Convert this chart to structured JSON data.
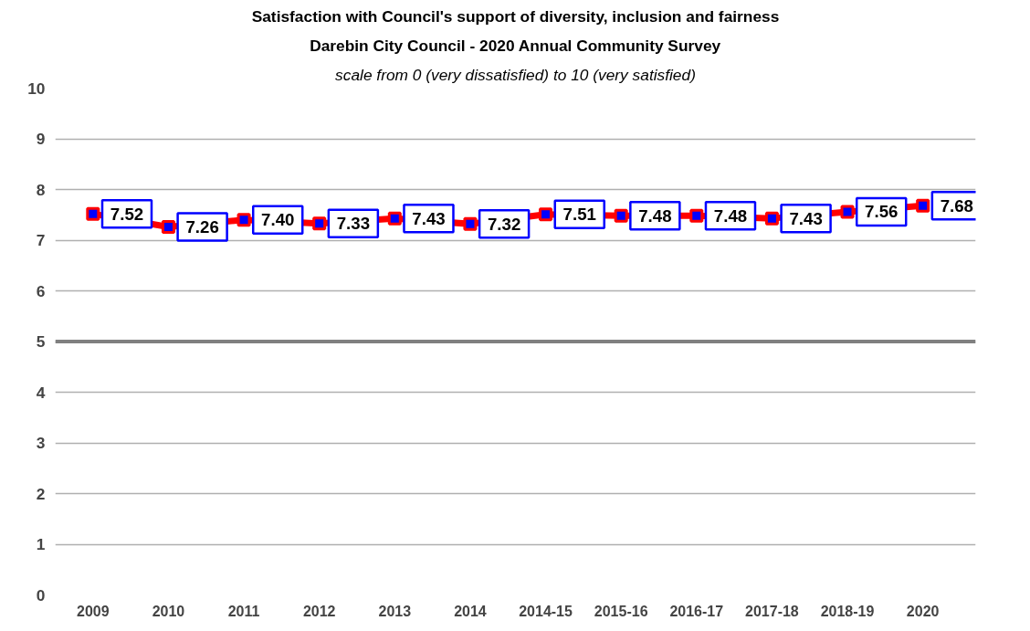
{
  "chart_data": {
    "type": "line",
    "title": "Satisfaction with Council's support of diversity, inclusion and fairness",
    "subtitle": "Darebin City Council - 2020 Annual Community Survey",
    "annotations": [
      "scale from 0 (very dissatisfied) to 10 (very satisfied)"
    ],
    "categories": [
      "2009",
      "2010",
      "2011",
      "2012",
      "2013",
      "2014",
      "2014-15",
      "2015-16",
      "2016-17",
      "2017-18",
      "2018-19",
      "2020"
    ],
    "series": [
      {
        "color": "#ff0000",
        "values": [
          7.52,
          7.26,
          7.4,
          7.33,
          7.43,
          7.32,
          7.51,
          7.48,
          7.48,
          7.43,
          7.56,
          7.68
        ],
        "value_labels": [
          "7.52",
          "7.26",
          "7.40",
          "7.33",
          "7.43",
          "7.32",
          "7.51",
          "7.48",
          "7.48",
          "7.43",
          "7.56",
          "7.68"
        ]
      }
    ],
    "ylim": [
      0,
      10
    ],
    "yticks": [
      0,
      1,
      2,
      3,
      4,
      5,
      6,
      7,
      8,
      9,
      10
    ],
    "ref_lines": [
      {
        "axis": "y",
        "value": 5,
        "color": "#808080"
      }
    ],
    "grid": "y",
    "marker": "square"
  }
}
